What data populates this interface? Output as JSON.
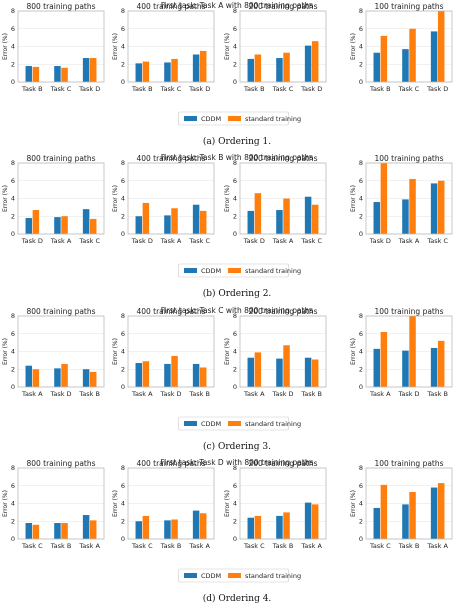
{
  "chart_data": [
    {
      "type": "bar",
      "figure_title": "First task: Task A with 800 training paths",
      "caption": "(a) Ordering 1.",
      "ylabel": "Error (%)",
      "legend": [
        "CDDM",
        "standard training"
      ],
      "colors": {
        "CDDM": "#1f77b4",
        "standard training": "#ff7f0e"
      },
      "subplots": [
        {
          "title": "800 training paths",
          "categories": [
            "Task B",
            "Task C",
            "Task D"
          ],
          "ylim": [
            0,
            8
          ],
          "series": [
            {
              "name": "CDDM",
              "values": [
                1.8,
                1.8,
                2.7
              ]
            },
            {
              "name": "standard training",
              "values": [
                1.7,
                1.6,
                2.7
              ]
            }
          ]
        },
        {
          "title": "400 training paths",
          "categories": [
            "Task B",
            "Task C",
            "Task D"
          ],
          "ylim": [
            0,
            8
          ],
          "series": [
            {
              "name": "CDDM",
              "values": [
                2.1,
                2.2,
                3.1
              ]
            },
            {
              "name": "standard training",
              "values": [
                2.3,
                2.6,
                3.5
              ]
            }
          ]
        },
        {
          "title": "200 training paths",
          "categories": [
            "Task B",
            "Task C",
            "Task D"
          ],
          "ylim": [
            0,
            8
          ],
          "series": [
            {
              "name": "CDDM",
              "values": [
                2.6,
                2.7,
                4.1
              ]
            },
            {
              "name": "standard training",
              "values": [
                3.1,
                3.3,
                4.6
              ]
            }
          ]
        },
        {
          "title": "100 training paths",
          "categories": [
            "Task B",
            "Task C",
            "Task D"
          ],
          "ylim": [
            0,
            8
          ],
          "series": [
            {
              "name": "CDDM",
              "values": [
                3.3,
                3.7,
                5.7
              ]
            },
            {
              "name": "standard training",
              "values": [
                5.2,
                6.0,
                8.0
              ]
            }
          ]
        }
      ]
    },
    {
      "type": "bar",
      "figure_title": "First task: Task B with 800 training paths",
      "caption": "(b) Ordering 2.",
      "ylabel": "Error (%)",
      "legend": [
        "CDDM",
        "standard training"
      ],
      "colors": {
        "CDDM": "#1f77b4",
        "standard training": "#ff7f0e"
      },
      "subplots": [
        {
          "title": "800 training paths",
          "categories": [
            "Task D",
            "Task A",
            "Task C"
          ],
          "ylim": [
            0,
            8
          ],
          "series": [
            {
              "name": "CDDM",
              "values": [
                1.8,
                1.9,
                2.8
              ]
            },
            {
              "name": "standard training",
              "values": [
                2.7,
                2.0,
                1.7
              ]
            }
          ]
        },
        {
          "title": "400 training paths",
          "categories": [
            "Task D",
            "Task A",
            "Task C"
          ],
          "ylim": [
            0,
            8
          ],
          "series": [
            {
              "name": "CDDM",
              "values": [
                2.0,
                2.1,
                3.3
              ]
            },
            {
              "name": "standard training",
              "values": [
                3.5,
                2.9,
                2.6
              ]
            }
          ]
        },
        {
          "title": "200 training paths",
          "categories": [
            "Task D",
            "Task A",
            "Task C"
          ],
          "ylim": [
            0,
            8
          ],
          "series": [
            {
              "name": "CDDM",
              "values": [
                2.6,
                2.7,
                4.2
              ]
            },
            {
              "name": "standard training",
              "values": [
                4.6,
                4.0,
                3.3
              ]
            }
          ]
        },
        {
          "title": "100 training paths",
          "categories": [
            "Task D",
            "Task A",
            "Task C"
          ],
          "ylim": [
            0,
            8
          ],
          "series": [
            {
              "name": "CDDM",
              "values": [
                3.6,
                3.9,
                5.7
              ]
            },
            {
              "name": "standard training",
              "values": [
                8.0,
                6.2,
                6.0
              ]
            }
          ]
        }
      ]
    },
    {
      "type": "bar",
      "figure_title": "First task: Task C with 800 training paths",
      "caption": "(c) Ordering 3.",
      "ylabel": "Error (%)",
      "legend": [
        "CDDM",
        "standard training"
      ],
      "colors": {
        "CDDM": "#1f77b4",
        "standard training": "#ff7f0e"
      },
      "subplots": [
        {
          "title": "800 training paths",
          "categories": [
            "Task A",
            "Task D",
            "Task B"
          ],
          "ylim": [
            0,
            8
          ],
          "series": [
            {
              "name": "CDDM",
              "values": [
                2.4,
                2.1,
                2.0
              ]
            },
            {
              "name": "standard training",
              "values": [
                2.0,
                2.6,
                1.7
              ]
            }
          ]
        },
        {
          "title": "400 training paths",
          "categories": [
            "Task A",
            "Task D",
            "Task B"
          ],
          "ylim": [
            0,
            8
          ],
          "series": [
            {
              "name": "CDDM",
              "values": [
                2.7,
                2.6,
                2.6
              ]
            },
            {
              "name": "standard training",
              "values": [
                2.9,
                3.5,
                2.2
              ]
            }
          ]
        },
        {
          "title": "200 training paths",
          "categories": [
            "Task A",
            "Task D",
            "Task B"
          ],
          "ylim": [
            0,
            8
          ],
          "series": [
            {
              "name": "CDDM",
              "values": [
                3.3,
                3.2,
                3.3
              ]
            },
            {
              "name": "standard training",
              "values": [
                3.9,
                4.7,
                3.1
              ]
            }
          ]
        },
        {
          "title": "100 training paths",
          "categories": [
            "Task A",
            "Task D",
            "Task B"
          ],
          "ylim": [
            0,
            8
          ],
          "series": [
            {
              "name": "CDDM",
              "values": [
                4.3,
                4.1,
                4.4
              ]
            },
            {
              "name": "standard training",
              "values": [
                6.2,
                8.0,
                5.2
              ]
            }
          ]
        }
      ]
    },
    {
      "type": "bar",
      "figure_title": "First task: Task D with 800 training paths",
      "caption": "(d) Ordering 4.",
      "ylabel": "Error (%)",
      "legend": [
        "CDDM",
        "standard training"
      ],
      "colors": {
        "CDDM": "#1f77b4",
        "standard training": "#ff7f0e"
      },
      "subplots": [
        {
          "title": "800 training paths",
          "categories": [
            "Task C",
            "Task B",
            "Task A"
          ],
          "ylim": [
            0,
            8
          ],
          "series": [
            {
              "name": "CDDM",
              "values": [
                1.8,
                1.8,
                2.7
              ]
            },
            {
              "name": "standard training",
              "values": [
                1.6,
                1.8,
                2.1
              ]
            }
          ]
        },
        {
          "title": "400 training paths",
          "categories": [
            "Task C",
            "Task B",
            "Task A"
          ],
          "ylim": [
            0,
            8
          ],
          "series": [
            {
              "name": "CDDM",
              "values": [
                2.0,
                2.1,
                3.2
              ]
            },
            {
              "name": "standard training",
              "values": [
                2.6,
                2.2,
                2.9
              ]
            }
          ]
        },
        {
          "title": "200 training paths",
          "categories": [
            "Task C",
            "Task B",
            "Task A"
          ],
          "ylim": [
            0,
            8
          ],
          "series": [
            {
              "name": "CDDM",
              "values": [
                2.4,
                2.6,
                4.1
              ]
            },
            {
              "name": "standard training",
              "values": [
                2.6,
                3.0,
                3.9
              ]
            }
          ]
        },
        {
          "title": "100 training paths",
          "categories": [
            "Task C",
            "Task B",
            "Task A"
          ],
          "ylim": [
            0,
            8
          ],
          "series": [
            {
              "name": "CDDM",
              "values": [
                3.5,
                3.9,
                5.8
              ]
            },
            {
              "name": "standard training",
              "values": [
                6.1,
                5.3,
                6.3
              ]
            }
          ]
        }
      ]
    }
  ]
}
